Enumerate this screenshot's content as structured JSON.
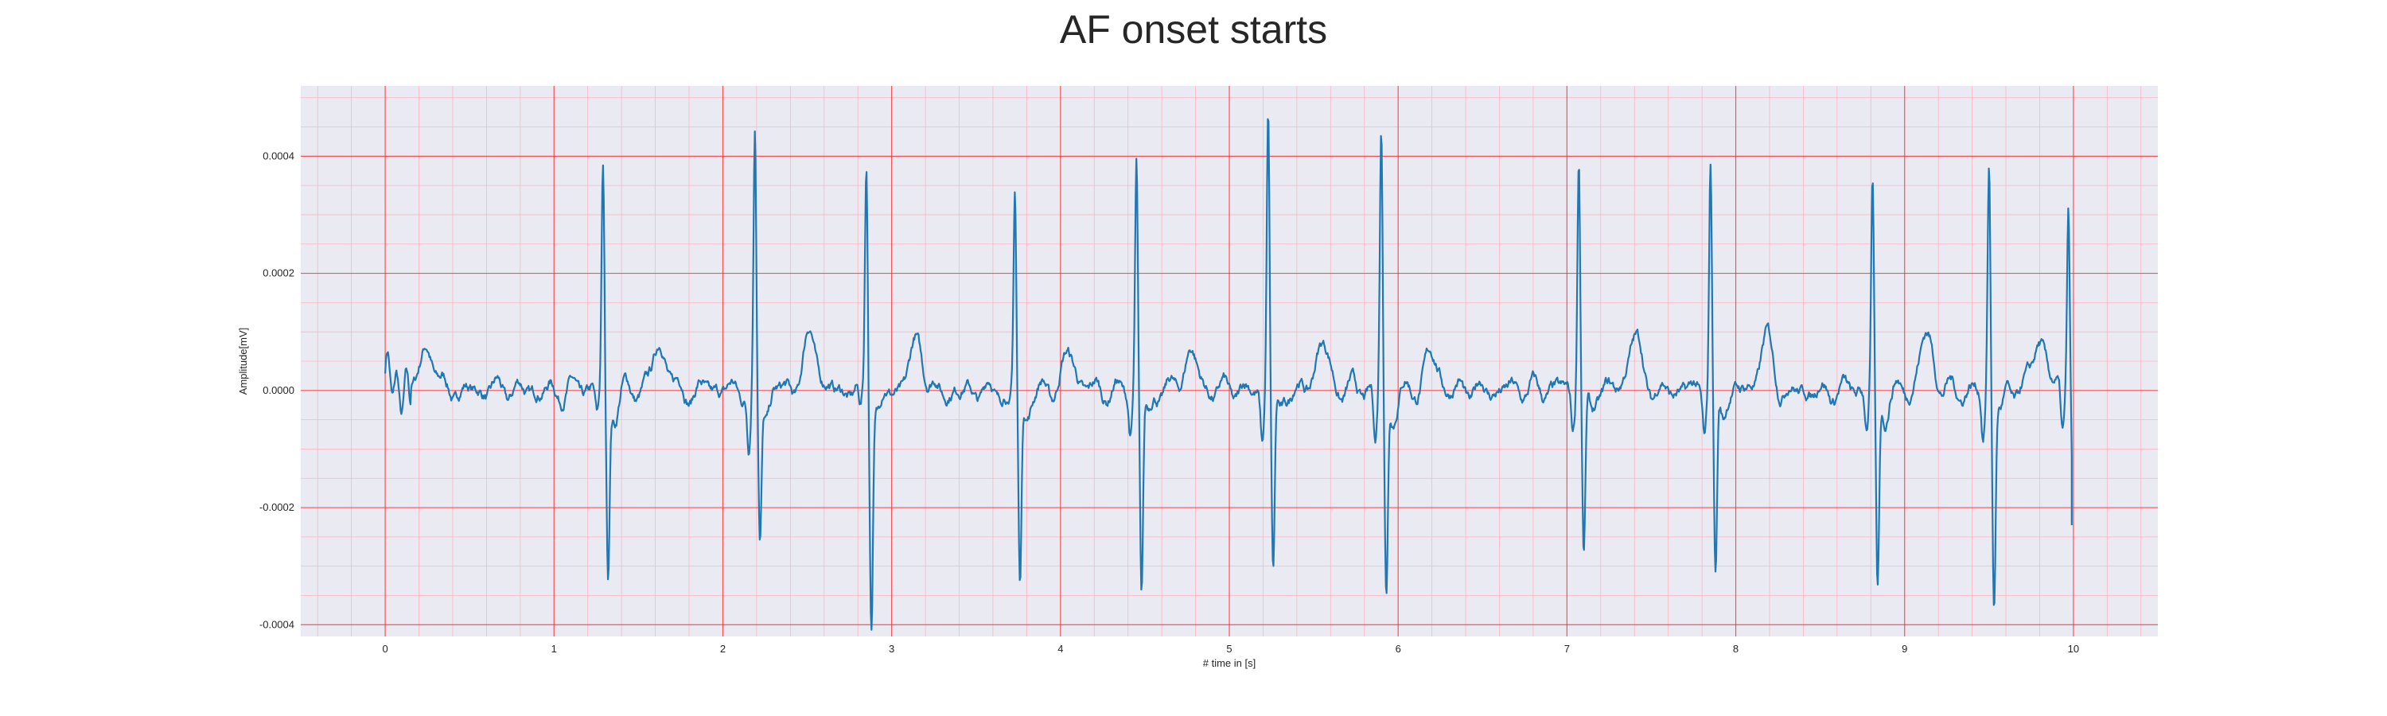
{
  "chart_data": {
    "type": "line",
    "title": "AF onset starts",
    "xlabel": "# time in [s]",
    "ylabel": "Amplitude[mV]",
    "xlim": [
      -0.5,
      10.5
    ],
    "ylim": [
      -0.00042,
      0.00052
    ],
    "xticks": [
      0,
      1,
      2,
      3,
      4,
      5,
      6,
      7,
      8,
      9,
      10
    ],
    "xtick_labels": [
      "0",
      "1",
      "2",
      "3",
      "4",
      "5",
      "6",
      "7",
      "8",
      "9",
      "10"
    ],
    "yticks": [
      -0.0004,
      -0.0002,
      0.0,
      0.0002,
      0.0004
    ],
    "ytick_labels": [
      "-0.0004",
      "-0.0002",
      "0.0000",
      "0.0002",
      "0.0004"
    ],
    "grid": true,
    "minor_grid": true,
    "colors": {
      "line": "#1f77b4",
      "background": "#eaeaf2",
      "major_grid": "#ff2b2b",
      "minor_grid": "#ffb3c1"
    },
    "series": [
      {
        "name": "",
        "beats": [
          {
            "t": 1.29,
            "r": 0.000375,
            "s": -0.000315,
            "q": -4.5e-05
          },
          {
            "t": 2.19,
            "r": 0.000435,
            "s": -0.000245,
            "q": -0.0001
          },
          {
            "t": 2.85,
            "r": 0.000385,
            "s": -0.00038,
            "q": -4e-05
          },
          {
            "t": 3.73,
            "r": 0.000335,
            "s": -0.000325,
            "q": -3.5e-05
          },
          {
            "t": 4.45,
            "r": 0.00039,
            "s": -0.00035,
            "q": -7e-05
          },
          {
            "t": 5.23,
            "r": 0.00048,
            "s": -0.000315,
            "q": -8.5e-05
          },
          {
            "t": 5.9,
            "r": 0.000445,
            "s": -0.000345,
            "q": -9e-05
          },
          {
            "t": 7.07,
            "r": 0.00041,
            "s": -0.000285,
            "q": -6e-05
          },
          {
            "t": 7.85,
            "r": 0.000385,
            "s": -0.000325,
            "q": -6.5e-05
          },
          {
            "t": 8.81,
            "r": 0.000345,
            "s": -0.00035,
            "q": -6e-05
          },
          {
            "t": 9.5,
            "r": 0.00039,
            "s": -0.00036,
            "q": -8e-05
          },
          {
            "t": 9.97,
            "r": 0.00032,
            "s": -0.000225,
            "q": -7e-05
          }
        ],
        "t_waves": [
          {
            "t": 0.25,
            "a": 7.5e-05
          },
          {
            "t": 1.63,
            "a": 8e-05
          },
          {
            "t": 2.52,
            "a": 9.5e-05
          },
          {
            "t": 3.15,
            "a": 8e-05
          },
          {
            "t": 4.05,
            "a": 6e-05
          },
          {
            "t": 4.77,
            "a": 6.5e-05
          },
          {
            "t": 5.55,
            "a": 8e-05
          },
          {
            "t": 6.2,
            "a": 6e-05
          },
          {
            "t": 7.4,
            "a": 9e-05
          },
          {
            "t": 8.18,
            "a": 8.5e-05
          },
          {
            "t": 9.13,
            "a": 9.5e-05
          },
          {
            "t": 9.8,
            "a": 8.5e-05
          }
        ],
        "start": {
          "t": 0.0,
          "v": 3.5e-05
        },
        "end": {
          "t": 9.99,
          "v": -0.00023
        }
      }
    ]
  }
}
